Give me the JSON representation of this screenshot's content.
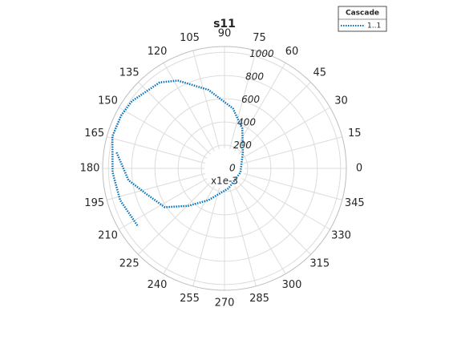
{
  "chart_data": {
    "type": "polar",
    "title": "s11",
    "series": [
      {
        "name": "1..1",
        "color": "#0072bd",
        "theta": [
          171.6,
          187,
          197,
          213,
          226,
          243,
          281,
          346,
          41,
          66,
          82,
          101.5,
          118,
          127,
          144,
          153,
          164,
          182,
          197,
          214
        ],
        "r": [
          940,
          834,
          719,
          614,
          448,
          308,
          176,
          142,
          210,
          377,
          522,
          690,
          857,
          927,
          986,
          1000,
          1005,
          965,
          940,
          897
        ]
      }
    ],
    "rlim": [
      0,
      1050
    ],
    "rticks": [
      0,
      200,
      400,
      600,
      800,
      1000
    ],
    "r_exponent": "x1e-3",
    "thetaticks": [
      0,
      15,
      30,
      45,
      60,
      75,
      90,
      105,
      120,
      135,
      150,
      165,
      180,
      195,
      210,
      225,
      240,
      255,
      270,
      285,
      300,
      315,
      330,
      345
    ],
    "grid": true,
    "legend_title": "Cascade",
    "legend": "top-right"
  }
}
